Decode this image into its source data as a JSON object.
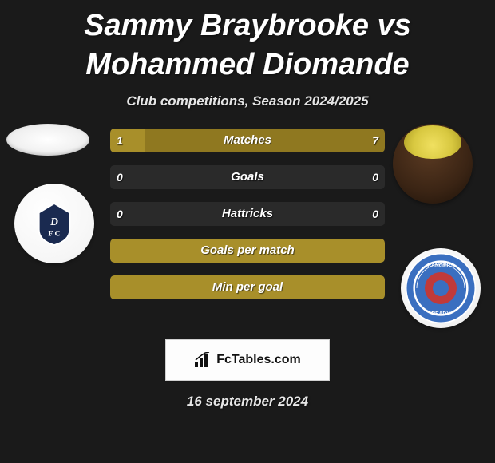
{
  "title": "Sammy Braybrooke vs Mohammed Diomande",
  "subtitle": "Club competitions, Season 2024/2025",
  "date": "16 september 2024",
  "footer_label": "FcTables.com",
  "colors": {
    "bar_olive": "#a88f2a",
    "bar_olive_dark": "#8f7820",
    "bg": "#1a1a1a"
  },
  "stats": [
    {
      "label": "Matches",
      "left_value": "1",
      "right_value": "7",
      "left_pct": 12.5,
      "right_pct": 87.5,
      "left_color": "#a88f2a",
      "right_color": "#8f7820"
    },
    {
      "label": "Goals",
      "left_value": "0",
      "right_value": "0",
      "left_pct": 0,
      "right_pct": 0,
      "left_color": "#a88f2a",
      "right_color": "#8f7820"
    },
    {
      "label": "Hattricks",
      "left_value": "0",
      "right_value": "0",
      "left_pct": 0,
      "right_pct": 0,
      "left_color": "#a88f2a",
      "right_color": "#8f7820"
    },
    {
      "label": "Goals per match",
      "left_value": "",
      "right_value": "",
      "left_pct": 100,
      "right_pct": 0,
      "left_color": "#a88f2a",
      "right_color": "#8f7820",
      "full": true
    },
    {
      "label": "Min per goal",
      "left_value": "",
      "right_value": "",
      "left_pct": 100,
      "right_pct": 0,
      "left_color": "#a88f2a",
      "right_color": "#8f7820",
      "full": true
    }
  ]
}
